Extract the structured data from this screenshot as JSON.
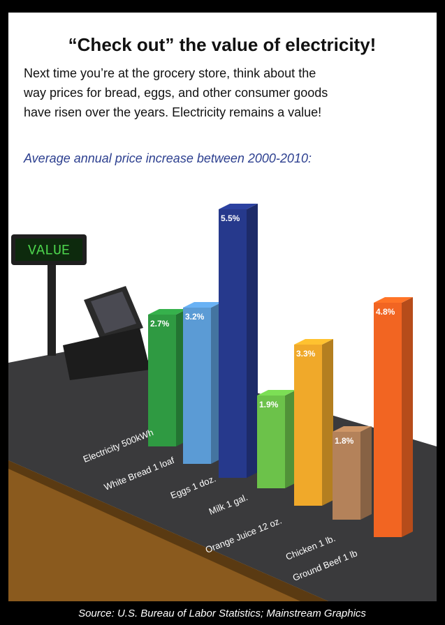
{
  "chart_data": {
    "type": "bar3d",
    "title": "“Check out” the value of electricity!",
    "intro": [
      "Next time you’re at the grocery store, think about the",
      "way prices for bread, eggs, and other consumer goods",
      "have risen over the years. Electricity remains a value!"
    ],
    "subtitle": "Average annual price increase between 2000-2010:",
    "register_display": "VALUE",
    "categories": [
      "Electricity 500kWh",
      "White Bread 1 loaf",
      "Eggs 1 doz.",
      "Milk 1 gal.",
      "Orange Juice 12 oz.",
      "Chicken 1 lb.",
      "Ground Beef 1 lb"
    ],
    "values": [
      2.7,
      3.2,
      5.5,
      1.9,
      3.3,
      1.8,
      4.8
    ],
    "value_labels": [
      "2.7%",
      "3.2%",
      "5.5%",
      "1.9%",
      "3.3%",
      "1.8%",
      "4.8%"
    ],
    "colors": [
      "#2f9a42",
      "#5b9bd5",
      "#26398c",
      "#6cc24a",
      "#f0a92a",
      "#b4825a",
      "#f26522"
    ],
    "source": "Source: U.S. Bureau of Labor Statistics; Mainstream Graphics"
  }
}
